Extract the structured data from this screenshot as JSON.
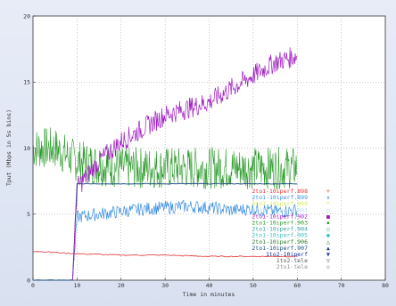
{
  "chart_data": {
    "type": "line",
    "title": "",
    "xlabel": "Time in minutes",
    "ylabel": "Tput (Mbps in 5s bins)",
    "xlim": [
      0,
      80
    ],
    "ylim": [
      0,
      20
    ],
    "x_ticks": [
      "0",
      "10",
      "20",
      "30",
      "40",
      "50",
      "60",
      "70",
      "80"
    ],
    "y_ticks": [
      "0",
      "5",
      "10",
      "15",
      "20"
    ],
    "grid": true,
    "legend_position": "bottom-right",
    "series": [
      {
        "name": "2to1-10iperf.898",
        "color": "#e03030",
        "marker": "+",
        "role": "red"
      },
      {
        "name": "2to1-10iperf.899",
        "color": "#3a8ee0",
        "marker": "x",
        "role": "blue"
      },
      {
        "name": "2to1-10iperf.900",
        "color": "#d0ef5a",
        "marker": "*",
        "role": "noise"
      },
      {
        "name": "2to1-10iperf.901",
        "color": "#b8e0f0",
        "marker": "□",
        "role": "noise"
      },
      {
        "name": "2to1-10iperf.902",
        "color": "#a020c0",
        "marker": "■",
        "role": "purple"
      },
      {
        "name": "2to1-10iperf.903",
        "color": "#2a9a2a",
        "marker": "▪",
        "role": "green"
      },
      {
        "name": "2to1-10iperf.904",
        "color": "#3aa0a0",
        "marker": "○",
        "role": "noise"
      },
      {
        "name": "2to1-10iperf.905",
        "color": "#40c0c0",
        "marker": "●",
        "role": "noise"
      },
      {
        "name": "2to1-10iperf.906",
        "color": "#2a7a2a",
        "marker": "△",
        "role": "green"
      },
      {
        "name": "2to1-10iperf.907",
        "color": "#205080",
        "marker": "▲",
        "role": "navy"
      },
      {
        "name": "1to2-10iperf",
        "color": "#1030a0",
        "marker": "▼",
        "role": "navy"
      },
      {
        "name": "1to2-tele",
        "color": "#606060",
        "marker": "▽",
        "role": "gray"
      },
      {
        "name": "2to1-tele",
        "color": "#909090",
        "marker": "◇",
        "role": "gray"
      }
    ],
    "approx_data": {
      "red": {
        "x": [
          0,
          10,
          20,
          30,
          40,
          50,
          60
        ],
        "y": [
          2.2,
          2.0,
          1.9,
          1.9,
          1.8,
          1.8,
          1.8
        ]
      },
      "blue": {
        "x": [
          9,
          10,
          15,
          20,
          25,
          30,
          35,
          40,
          45,
          50,
          55,
          60
        ],
        "y": [
          0,
          4.8,
          5.0,
          5.2,
          5.4,
          5.5,
          5.6,
          5.5,
          5.3,
          5.4,
          5.2,
          5.3
        ]
      },
      "purple": {
        "x": [
          9,
          10,
          15,
          20,
          25,
          30,
          35,
          40,
          45,
          50,
          55,
          60
        ],
        "y": [
          0,
          7.0,
          9.0,
          10.5,
          11.5,
          12.5,
          13.0,
          13.5,
          14.5,
          15.5,
          16.5,
          17.0
        ]
      },
      "green": {
        "x": [
          0,
          5,
          10,
          20,
          30,
          40,
          50,
          60
        ],
        "y": [
          10.0,
          10.0,
          9.0,
          8.5,
          8.5,
          8.5,
          8.5,
          8.5
        ]
      },
      "navy": {
        "x": [
          0,
          9,
          10,
          60
        ],
        "y": [
          0,
          0,
          7.3,
          7.3
        ]
      }
    }
  }
}
